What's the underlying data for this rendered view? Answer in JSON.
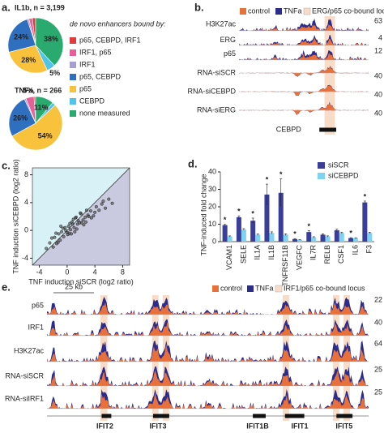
{
  "chart_data": [
    {
      "type": "pie",
      "label": "a.",
      "legend_title": "de novo enhancers bound by:",
      "categories": [
        "p65, CEBPD, IRF1",
        "IRF1, p65",
        "IRF1",
        "p65, CEBPD",
        "p65",
        "CEBPD",
        "none measured"
      ],
      "colors": [
        "#e03a3e",
        "#e8609a",
        "#a79ed2",
        "#2e6fbf",
        "#f9c23c",
        "#4fc3e8",
        "#2aaa6e"
      ],
      "series": [
        {
          "name": "IL1b, n = 3,199",
          "values": [
            2,
            2,
            1,
            24,
            28,
            5,
            38
          ],
          "value_labels": [
            null,
            null,
            null,
            "24%",
            "28%",
            "5%",
            "38%"
          ]
        },
        {
          "name": "TNFa, n = 266",
          "values": [
            1,
            5,
            1,
            26,
            54,
            2,
            11
          ],
          "value_labels": [
            null,
            "5%",
            null,
            "26%",
            "54%",
            null,
            "11%"
          ]
        }
      ]
    },
    {
      "type": "tracks",
      "label": "b.",
      "legend": [
        "control",
        "TNFa",
        "ERG/p65 co-bound locus"
      ],
      "colors": [
        "#e8703a",
        "#2b2c8c",
        "#f8dcc8"
      ],
      "tracks": [
        {
          "name": "H3K27ac",
          "scale": 63
        },
        {
          "name": "ERG",
          "scale": 4
        },
        {
          "name": "p65",
          "scale": 12
        },
        {
          "name": "RNA-siSCR",
          "scale": 40
        },
        {
          "name": "RNA-siCEBPD",
          "scale": 40
        },
        {
          "name": "RNA-siERG",
          "scale": 40
        }
      ],
      "genes": [
        "CEBPD"
      ]
    },
    {
      "type": "scatter",
      "label": "c.",
      "xlabel": "TNF induction siSCR (log2 ratio)",
      "ylabel": "TNF induction siCEBPD (log2 ratio)",
      "xlim": [
        -5,
        9
      ],
      "ylim": [
        -5,
        9
      ],
      "xticks": [
        -4,
        0,
        4,
        8
      ],
      "yticks": [
        -4,
        0,
        4,
        8
      ],
      "x": [
        -2.5,
        -2,
        -1.8,
        -1.5,
        -1.2,
        -1,
        -0.8,
        -0.5,
        -0.3,
        0,
        0.2,
        0.5,
        0.7,
        1,
        1.2,
        1.5,
        1.8,
        2,
        2.3,
        2.6,
        3,
        3.4,
        3.8,
        4.2,
        4.6,
        5,
        5.5,
        6,
        -1.3,
        -0.6,
        0.1,
        0.8,
        1.4,
        2.1,
        2.8,
        3.5,
        -0.9,
        0.4,
        1.1,
        1.9,
        -3,
        -2.2,
        0.3,
        0.9,
        1.6,
        2.4,
        3.1,
        4,
        5.2,
        6.5,
        -0.2,
        0.6,
        1.3,
        -1.6,
        2.7
      ],
      "y": [
        -1.8,
        -2.4,
        -1,
        -1.9,
        -0.5,
        -1.4,
        -0.2,
        -0.9,
        0.4,
        -0.3,
        0.6,
        0.1,
        1.2,
        0.4,
        1.8,
        0.9,
        1.1,
        2.4,
        1.5,
        1.9,
        2.2,
        2.8,
        2.1,
        3.4,
        2.9,
        3.8,
        3.2,
        4.5,
        -1.7,
        0.3,
        -0.6,
        0.9,
        0.2,
        1.1,
        2.9,
        1.8,
        0.6,
        1.0,
        -0.2,
        2.5,
        -2.6,
        -1.1,
        -0.4,
        1.6,
        1.4,
        0.8,
        2.0,
        2.6,
        4.2,
        3.9,
        0.0,
        -0.5,
        1.9,
        -0.4,
        1.2
      ]
    },
    {
      "type": "bar",
      "label": "d.",
      "ylabel": "TNF-induced fold change",
      "ylim": [
        0,
        40
      ],
      "yticks": [
        0,
        10,
        20,
        30,
        40
      ],
      "categories": [
        "VCAM1",
        "SELE",
        "IL1A",
        "IL1B",
        "TNFRSF11B",
        "VEGFC",
        "IL7R",
        "RELB",
        "CSF1",
        "IL6",
        "F3"
      ],
      "series": [
        {
          "name": "siSCR",
          "color": "#3b3d9a",
          "values": [
            9.5,
            14,
            12,
            27,
            28,
            1.5,
            5.5,
            4,
            6.5,
            2,
            22.5
          ],
          "errors": [
            0.5,
            0.8,
            1.5,
            6,
            8,
            0.3,
            0.8,
            0.5,
            0.6,
            0.3,
            0.8
          ]
        },
        {
          "name": "siCEBPD",
          "color": "#7fd3f0",
          "values": [
            3,
            7,
            4,
            5,
            4,
            1,
            2.5,
            3,
            5,
            2,
            5
          ],
          "errors": [
            0.3,
            0.5,
            0.4,
            0.6,
            0.5,
            0.2,
            0.3,
            0.3,
            0.4,
            0.2,
            0.4
          ]
        }
      ],
      "significance": [
        "*",
        "*",
        "*",
        "*",
        "*",
        "*",
        "*",
        null,
        null,
        "*",
        "*"
      ]
    },
    {
      "type": "tracks",
      "label": "e.",
      "scale_bar": "25 kb",
      "legend": [
        "control",
        "TNFa",
        "IRF1/p65 co-bound locus"
      ],
      "colors": [
        "#e8703a",
        "#2b2c8c",
        "#f8dcc8"
      ],
      "tracks": [
        {
          "name": "p65",
          "scale": 22
        },
        {
          "name": "IRF1",
          "scale": 40
        },
        {
          "name": "H3K27ac",
          "scale": 64
        },
        {
          "name": "RNA-siSCR",
          "scale": 25
        },
        {
          "name": "RNA-siIRF1",
          "scale": 25
        }
      ],
      "genes": [
        "IFIT2",
        "IFIT3",
        "IFIT1B",
        "IFIT1",
        "IFIT5"
      ]
    }
  ]
}
